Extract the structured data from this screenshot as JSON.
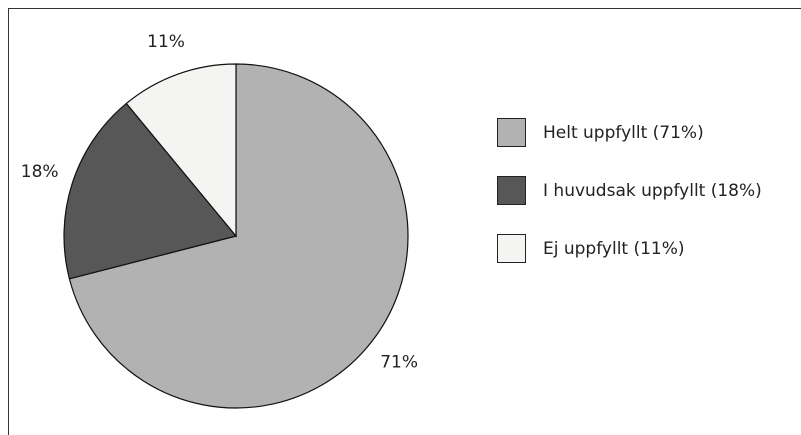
{
  "chart_data": {
    "type": "pie",
    "categories": [
      "Helt uppfyllt (71%)",
      "I huvudsak uppfyllt (18%)",
      "Ej uppfyllt (11%)"
    ],
    "values": [
      71,
      18,
      11
    ],
    "value_labels": [
      "71%",
      "18%",
      "11%"
    ],
    "colors": [
      "#b2b2b2",
      "#575757",
      "#f4f4f2"
    ],
    "legend": "right"
  }
}
